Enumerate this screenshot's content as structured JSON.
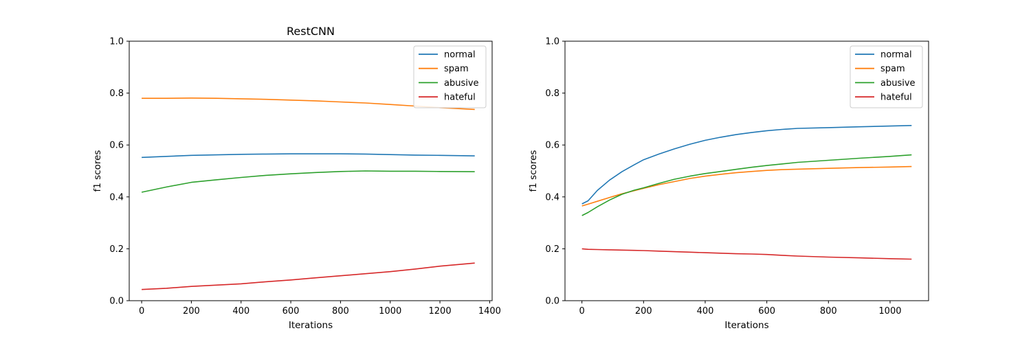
{
  "colors": {
    "normal": "#1f77b4",
    "spam": "#ff7f0e",
    "abusive": "#2ca02c",
    "hateful": "#d62728"
  },
  "chart_data": [
    {
      "type": "line",
      "title": "RestCNN",
      "xlabel": "Iterations",
      "ylabel": "f1 scores",
      "xlim": [
        -50,
        1410
      ],
      "ylim": [
        0.0,
        1.0
      ],
      "xticks": [
        0,
        200,
        400,
        600,
        800,
        1000,
        1200,
        1400
      ],
      "yticks": [
        0.0,
        0.2,
        0.4,
        0.6,
        0.8,
        1.0
      ],
      "grid": false,
      "legend_position": "top-right",
      "x": [
        0,
        100,
        200,
        300,
        400,
        500,
        600,
        700,
        800,
        900,
        1000,
        1100,
        1200,
        1340
      ],
      "series": [
        {
          "name": "normal",
          "color": "#1f77b4",
          "values": [
            0.552,
            0.556,
            0.56,
            0.562,
            0.564,
            0.565,
            0.566,
            0.566,
            0.566,
            0.565,
            0.563,
            0.561,
            0.56,
            0.558
          ]
        },
        {
          "name": "spam",
          "color": "#ff7f0e",
          "values": [
            0.78,
            0.78,
            0.781,
            0.78,
            0.778,
            0.776,
            0.773,
            0.77,
            0.766,
            0.762,
            0.756,
            0.75,
            0.744,
            0.737
          ]
        },
        {
          "name": "abusive",
          "color": "#2ca02c",
          "values": [
            0.418,
            0.438,
            0.456,
            0.466,
            0.475,
            0.483,
            0.489,
            0.494,
            0.498,
            0.5,
            0.499,
            0.499,
            0.498,
            0.497
          ]
        },
        {
          "name": "hateful",
          "color": "#d62728",
          "values": [
            0.043,
            0.048,
            0.055,
            0.06,
            0.065,
            0.073,
            0.08,
            0.088,
            0.096,
            0.104,
            0.112,
            0.122,
            0.133,
            0.145
          ]
        }
      ]
    },
    {
      "type": "line",
      "title": "",
      "xlabel": "Iterations",
      "ylabel": "f1 scores",
      "xlim": [
        -55,
        1125
      ],
      "ylim": [
        0.0,
        1.0
      ],
      "xticks": [
        0,
        200,
        400,
        600,
        800,
        1000
      ],
      "yticks": [
        0.0,
        0.2,
        0.4,
        0.6,
        0.8,
        1.0
      ],
      "grid": false,
      "legend_position": "top-right",
      "x": [
        0,
        20,
        50,
        90,
        130,
        170,
        200,
        250,
        300,
        350,
        400,
        450,
        500,
        550,
        600,
        650,
        700,
        800,
        900,
        1000,
        1070
      ],
      "series": [
        {
          "name": "normal",
          "color": "#1f77b4",
          "values": [
            0.373,
            0.385,
            0.425,
            0.465,
            0.497,
            0.524,
            0.543,
            0.565,
            0.585,
            0.603,
            0.618,
            0.63,
            0.64,
            0.648,
            0.655,
            0.66,
            0.664,
            0.667,
            0.67,
            0.673,
            0.675
          ]
        },
        {
          "name": "spam",
          "color": "#ff7f0e",
          "values": [
            0.365,
            0.372,
            0.383,
            0.398,
            0.412,
            0.424,
            0.433,
            0.447,
            0.459,
            0.471,
            0.48,
            0.487,
            0.493,
            0.498,
            0.502,
            0.505,
            0.507,
            0.51,
            0.513,
            0.515,
            0.517
          ]
        },
        {
          "name": "abusive",
          "color": "#2ca02c",
          "values": [
            0.328,
            0.34,
            0.362,
            0.388,
            0.41,
            0.426,
            0.435,
            0.452,
            0.468,
            0.48,
            0.49,
            0.498,
            0.506,
            0.514,
            0.521,
            0.527,
            0.533,
            0.541,
            0.549,
            0.556,
            0.562
          ]
        },
        {
          "name": "hateful",
          "color": "#d62728",
          "values": [
            0.2,
            0.198,
            0.197,
            0.196,
            0.195,
            0.194,
            0.193,
            0.191,
            0.189,
            0.187,
            0.185,
            0.183,
            0.181,
            0.18,
            0.178,
            0.175,
            0.172,
            0.168,
            0.165,
            0.162,
            0.16
          ]
        }
      ]
    }
  ]
}
